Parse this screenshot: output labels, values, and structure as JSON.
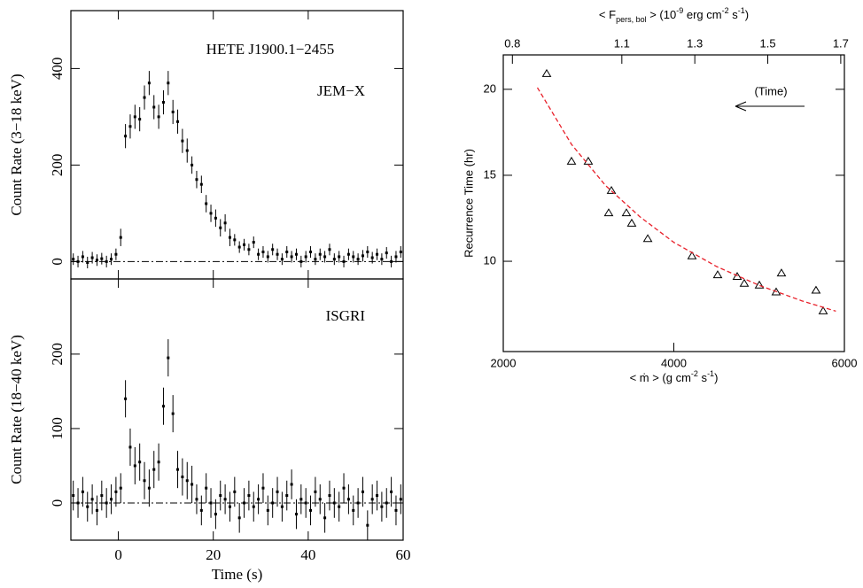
{
  "chart_data": [
    {
      "type": "errorbar",
      "ylabel": "Count Rate (3−18 keV)",
      "annotations": [
        "HETE J1900.1−2455",
        "JEM−X"
      ],
      "xlim": [
        -10,
        60
      ],
      "ylim": [
        -36,
        520
      ],
      "yticks": [
        0,
        200,
        400
      ],
      "zero_line": true,
      "color": "#000000",
      "x": [
        -9.5,
        -8.5,
        -7.5,
        -6.5,
        -5.5,
        -4.5,
        -3.5,
        -2.5,
        -1.5,
        -0.5,
        0.5,
        1.5,
        2.5,
        3.5,
        4.5,
        5.5,
        6.5,
        7.5,
        8.5,
        9.5,
        10.5,
        11.5,
        12.5,
        13.5,
        14.5,
        15.5,
        16.5,
        17.5,
        18.5,
        19.5,
        20.5,
        21.5,
        22.5,
        23.5,
        24.5,
        25.5,
        26.5,
        27.5,
        28.5,
        29.5,
        30.5,
        31.5,
        32.5,
        33.5,
        34.5,
        35.5,
        36.5,
        37.5,
        38.5,
        39.5,
        40.5,
        41.5,
        42.5,
        43.5,
        44.5,
        45.5,
        46.5,
        47.5,
        48.5,
        49.5,
        50.5,
        51.5,
        52.5,
        53.5,
        54.5,
        55.5,
        56.5,
        57.5,
        58.5,
        59.5
      ],
      "values": [
        5,
        0,
        10,
        -2,
        8,
        3,
        6,
        0,
        5,
        15,
        50,
        260,
        280,
        300,
        295,
        340,
        370,
        320,
        300,
        330,
        370,
        310,
        290,
        250,
        230,
        200,
        170,
        160,
        120,
        100,
        90,
        70,
        80,
        50,
        45,
        30,
        35,
        25,
        40,
        15,
        20,
        10,
        25,
        15,
        5,
        20,
        10,
        15,
        0,
        10,
        20,
        5,
        15,
        10,
        25,
        5,
        10,
        0,
        15,
        10,
        5,
        12,
        20,
        8,
        15,
        5,
        18,
        0,
        10,
        20
      ],
      "errors": [
        12,
        12,
        12,
        12,
        12,
        12,
        12,
        12,
        12,
        12,
        18,
        25,
        25,
        25,
        25,
        25,
        25,
        25,
        25,
        25,
        25,
        25,
        25,
        25,
        25,
        18,
        18,
        18,
        18,
        18,
        18,
        18,
        18,
        18,
        12,
        12,
        12,
        12,
        12,
        12,
        12,
        12,
        12,
        12,
        12,
        12,
        12,
        12,
        12,
        12,
        12,
        12,
        12,
        12,
        12,
        12,
        12,
        12,
        12,
        12,
        12,
        12,
        12,
        12,
        12,
        12,
        12,
        12,
        12,
        12
      ]
    },
    {
      "type": "errorbar",
      "ylabel": "Count Rate (18−40 keV)",
      "xlabel": "Time (s)",
      "annotations": [
        "ISGRI"
      ],
      "xlim": [
        -10,
        60
      ],
      "ylim": [
        -50,
        301
      ],
      "yticks": [
        0,
        100,
        200
      ],
      "xticks": [
        0,
        20,
        40,
        60
      ],
      "zero_line": true,
      "color": "#000000",
      "x": [
        -9.5,
        -8.5,
        -7.5,
        -6.5,
        -5.5,
        -4.5,
        -3.5,
        -2.5,
        -1.5,
        -0.5,
        0.5,
        1.5,
        2.5,
        3.5,
        4.5,
        5.5,
        6.5,
        7.5,
        8.5,
        9.5,
        10.5,
        11.5,
        12.5,
        13.5,
        14.5,
        15.5,
        16.5,
        17.5,
        18.5,
        19.5,
        20.5,
        21.5,
        22.5,
        23.5,
        24.5,
        25.5,
        26.5,
        27.5,
        28.5,
        29.5,
        30.5,
        31.5,
        32.5,
        33.5,
        34.5,
        35.5,
        36.5,
        37.5,
        38.5,
        39.5,
        40.5,
        41.5,
        42.5,
        43.5,
        44.5,
        45.5,
        46.5,
        47.5,
        48.5,
        49.5,
        50.5,
        51.5,
        52.5,
        53.5,
        54.5,
        55.5,
        56.5,
        57.5,
        58.5,
        59.5
      ],
      "values": [
        10,
        0,
        15,
        -5,
        5,
        -10,
        10,
        0,
        5,
        15,
        20,
        140,
        75,
        50,
        55,
        30,
        20,
        45,
        55,
        130,
        195,
        120,
        45,
        35,
        30,
        25,
        5,
        -10,
        20,
        0,
        -15,
        10,
        5,
        -5,
        15,
        -20,
        0,
        10,
        -5,
        5,
        20,
        -10,
        0,
        15,
        -5,
        10,
        25,
        -15,
        5,
        0,
        -10,
        15,
        5,
        -20,
        10,
        0,
        -5,
        20,
        5,
        -10,
        0,
        15,
        -30,
        5,
        10,
        -5,
        0,
        15,
        -10,
        5
      ],
      "errors": [
        20,
        20,
        20,
        20,
        20,
        20,
        20,
        20,
        20,
        20,
        20,
        25,
        25,
        25,
        25,
        25,
        25,
        25,
        25,
        25,
        25,
        25,
        25,
        25,
        25,
        25,
        20,
        20,
        20,
        20,
        20,
        20,
        20,
        20,
        20,
        20,
        20,
        20,
        20,
        20,
        20,
        20,
        20,
        20,
        20,
        20,
        20,
        20,
        20,
        20,
        20,
        20,
        20,
        20,
        20,
        20,
        20,
        20,
        20,
        20,
        20,
        20,
        20,
        20,
        20,
        20,
        20,
        20,
        20,
        20
      ]
    },
    {
      "type": "scatter",
      "ylabel": "Recurrence Time (hr)",
      "xlabel": [
        "< ṁ > (g cm",
        {
          "sup": "-2"
        },
        " s",
        {
          "sup": "-1"
        },
        ")"
      ],
      "x2label": [
        "< F",
        {
          "sub": "pers, bol"
        },
        " > (10",
        {
          "sup": "-9"
        },
        " erg cm",
        {
          "sup": "-2"
        },
        " s",
        {
          "sup": "-1"
        },
        ")"
      ],
      "annotations": [
        "(Time)"
      ],
      "xlim": [
        2000,
        6000
      ],
      "xticks": [
        2000,
        4000,
        6000
      ],
      "x2lim": [
        0.775,
        1.71
      ],
      "x2ticks": [
        0.8,
        1.1,
        1.3,
        1.5,
        1.7
      ],
      "ylim": [
        4.75,
        22
      ],
      "yticks": [
        10,
        15,
        20
      ],
      "series": [
        {
          "marker": "triangle",
          "color": "#000000",
          "x": [
            2509,
            2800,
            2997,
            3268,
            3236,
            3444,
            3506,
            3694,
            4213,
            4514,
            4743,
            4826,
            5003,
            5200,
            5262,
            5667,
            5751
          ],
          "values": [
            20.9,
            15.8,
            15.8,
            14.1,
            12.8,
            12.8,
            12.2,
            11.3,
            10.3,
            9.2,
            9.1,
            8.7,
            8.6,
            8.2,
            9.3,
            8.3,
            7.1
          ]
        },
        {
          "line": "dashed",
          "color": "#e8202a",
          "x": [
            2400,
            2800,
            3200,
            3600,
            4000,
            4500,
            5000,
            5500,
            5900
          ],
          "values": [
            20.1,
            16.8,
            14.4,
            12.6,
            11.1,
            9.7,
            8.6,
            7.7,
            7.1
          ]
        }
      ]
    }
  ]
}
